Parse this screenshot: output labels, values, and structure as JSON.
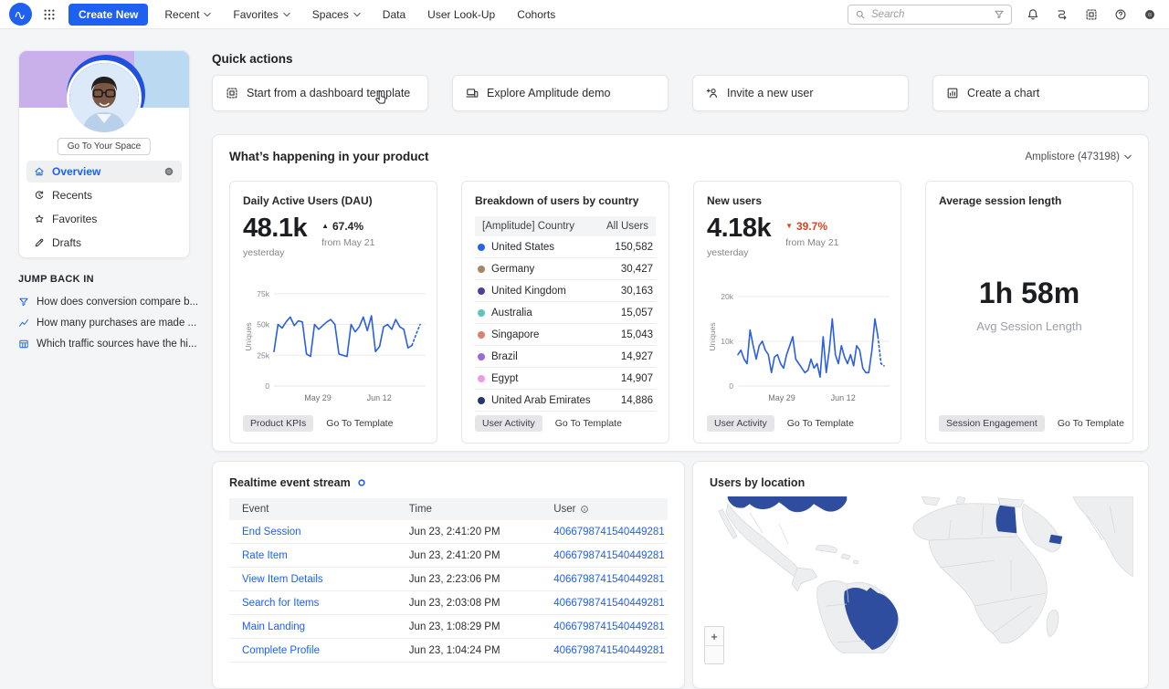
{
  "topbar": {
    "create_new_label": "Create New",
    "menu_items": [
      {
        "label": "Recent",
        "dropdown": true
      },
      {
        "label": "Favorites",
        "dropdown": true
      },
      {
        "label": "Spaces",
        "dropdown": true
      },
      {
        "label": "Data",
        "dropdown": false
      },
      {
        "label": "User Look-Up",
        "dropdown": false
      },
      {
        "label": "Cohorts",
        "dropdown": false
      }
    ],
    "search": {
      "placeholder": "Search"
    },
    "right_icons": [
      "bell-icon",
      "journeys-icon",
      "templates-icon",
      "help-icon",
      "settings-icon"
    ]
  },
  "sidebar": {
    "go_to_space_label": "Go To Your Space",
    "menu": [
      {
        "label": "Overview",
        "icon": "home",
        "active": true
      },
      {
        "label": "Recents",
        "icon": "recents",
        "active": false
      },
      {
        "label": "Favorites",
        "icon": "star",
        "active": false
      },
      {
        "label": "Drafts",
        "icon": "pencil",
        "active": false
      }
    ],
    "jump_back_in": {
      "title": "JUMP BACK IN",
      "items": [
        {
          "icon": "funnel",
          "label": "How does conversion compare b..."
        },
        {
          "icon": "linechart",
          "label": "How many purchases are made ..."
        },
        {
          "icon": "tablegrid",
          "label": "Which traffic sources have the hi..."
        }
      ]
    }
  },
  "quick_actions": {
    "title": "Quick actions",
    "cards": [
      {
        "icon": "dashtpl",
        "label": "Start from a dashboard template"
      },
      {
        "icon": "demo",
        "label": "Explore Amplitude demo"
      },
      {
        "icon": "invite",
        "label": "Invite a new user"
      },
      {
        "icon": "chart",
        "label": "Create a chart"
      }
    ]
  },
  "whats_happening": {
    "title": "What’s happening in your product",
    "project_selector": "Amplistore (473198)",
    "dau_card": {
      "title": "Daily Active Users (DAU)",
      "value": "48.1k",
      "value_caption": "yesterday",
      "change": "67.4%",
      "change_direction": "up",
      "change_caption": "from May 21",
      "badge": "Product KPIs",
      "link": "Go To Template"
    },
    "country_card": {
      "title": "Breakdown of users by country",
      "columns": [
        "[Amplitude] Country",
        "All Users"
      ],
      "rows": [
        {
          "country": "United States",
          "value": "150,582",
          "color": "#2563ef"
        },
        {
          "country": "Germany",
          "value": "30,427",
          "color": "#a58763"
        },
        {
          "country": "United Kingdom",
          "value": "30,163",
          "color": "#44459a"
        },
        {
          "country": "Australia",
          "value": "15,057",
          "color": "#5ec4ba"
        },
        {
          "country": "Singapore",
          "value": "15,043",
          "color": "#d88371"
        },
        {
          "country": "Brazil",
          "value": "14,927",
          "color": "#9a6ad8"
        },
        {
          "country": "Egypt",
          "value": "14,907",
          "color": "#ef9ae3"
        },
        {
          "country": "United Arab Emirates",
          "value": "14,886",
          "color": "#223770"
        }
      ],
      "badge": "User Activity",
      "link": "Go To Template"
    },
    "new_users_card": {
      "title": "New users",
      "value": "4.18k",
      "value_caption": "yesterday",
      "change": "39.7%",
      "change_direction": "down",
      "change_caption": "from May 21",
      "badge": "User Activity",
      "link": "Go To Template"
    },
    "session_card": {
      "title": "Average session length",
      "value": "1h 58m",
      "caption": "Avg Session Length",
      "badge": "Session Engagement",
      "link": "Go To Template"
    }
  },
  "event_stream": {
    "title": "Realtime event stream",
    "columns": [
      "Event",
      "Time",
      "User"
    ],
    "rows": [
      {
        "event": "End Session",
        "time": "Jun 23, 2:41:20 PM",
        "user": "4066798741540449281"
      },
      {
        "event": "Rate Item",
        "time": "Jun 23, 2:41:20 PM",
        "user": "4066798741540449281"
      },
      {
        "event": "View Item Details",
        "time": "Jun 23, 2:23:06 PM",
        "user": "4066798741540449281"
      },
      {
        "event": "Search for Items",
        "time": "Jun 23, 2:03:08 PM",
        "user": "4066798741540449281"
      },
      {
        "event": "Main Landing",
        "time": "Jun 23, 1:08:29 PM",
        "user": "4066798741540449281"
      },
      {
        "event": "Complete Profile",
        "time": "Jun 23, 1:04:24 PM",
        "user": "4066798741540449281"
      }
    ]
  },
  "map_panel": {
    "title": "Users by location",
    "zoom_in_label": "+",
    "highlighted_regions": [
      "United States (south)",
      "Brazil",
      "Egypt",
      "United Arab Emirates"
    ],
    "colors": {
      "land": "#eceef0",
      "border": "#d5d8db",
      "highlight": "#2e4d9e"
    }
  },
  "chart_data": [
    {
      "type": "line",
      "title": "Daily Active Users (DAU)",
      "ylabel": "Uniques",
      "x_ticks": [
        "May 29",
        "Jun 12"
      ],
      "y_ticks": [
        "0",
        "25k",
        "50k",
        "75k"
      ],
      "y_tick_values": [
        0,
        25,
        50,
        75
      ],
      "ylim": [
        0,
        80
      ],
      "unit": "thousands of uniques",
      "values": [
        28,
        50,
        47,
        52,
        56,
        49,
        53,
        52,
        26,
        24,
        50,
        46,
        49,
        52,
        54,
        50,
        26,
        25,
        24,
        50,
        44,
        48,
        56,
        45,
        57,
        28,
        32,
        48,
        50,
        46,
        54,
        48,
        46,
        31,
        33,
        42,
        50
      ]
    },
    {
      "type": "line",
      "title": "New users",
      "ylabel": "Uniques",
      "x_ticks": [
        "May 29",
        "Jun 12"
      ],
      "y_ticks": [
        "0",
        "10k",
        "20k"
      ],
      "y_tick_values": [
        0,
        10,
        20
      ],
      "ylim": [
        0,
        22
      ],
      "unit": "thousands of uniques",
      "values": [
        7,
        8,
        6,
        5,
        12.5,
        9,
        6,
        9,
        10,
        8,
        7,
        3,
        6.5,
        7,
        5,
        4,
        7,
        9,
        11,
        6,
        5,
        4,
        3,
        3.5,
        6,
        4,
        5,
        2,
        11,
        3,
        8,
        15,
        7,
        5,
        9,
        6.5,
        5,
        7,
        4.5,
        9,
        8,
        4,
        3,
        3,
        8,
        15,
        11,
        5,
        4.5
      ]
    }
  ],
  "colors": {
    "accent": "#1e61f0",
    "link": "#1e61f0",
    "chart_line": "#2a5fe0",
    "positive_change": "#23252a",
    "negative_change": "#cf4a1f",
    "badge_bg": "#e5e6e9",
    "banner_purple": "#c9b0ea",
    "banner_blue": "#2150e0",
    "banner_lightblue": "#bcd9f2"
  }
}
